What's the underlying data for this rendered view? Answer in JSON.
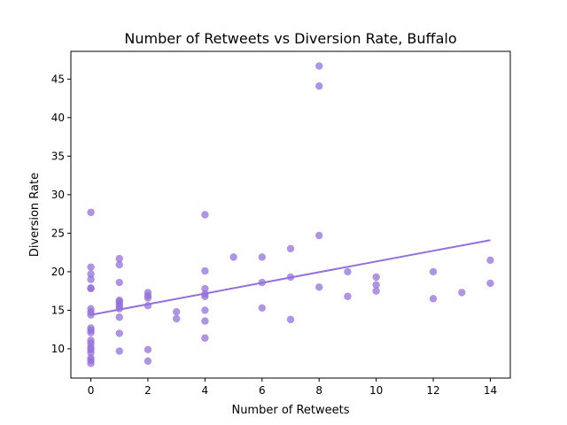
{
  "chart_data": {
    "type": "scatter",
    "title": "Number of Retweets vs Diversion Rate, Buffalo",
    "xlabel": "Number of Retweets",
    "ylabel": "Diversion Rate",
    "xlim": [
      -0.7,
      14.7
    ],
    "ylim": [
      6.2,
      48.6
    ],
    "xticks": [
      0,
      2,
      4,
      6,
      8,
      10,
      12,
      14
    ],
    "yticks": [
      10,
      15,
      20,
      25,
      30,
      35,
      40,
      45
    ],
    "grid": false,
    "point_color": "#9370db",
    "line_color": "#9370db",
    "points": [
      [
        0,
        27.7
      ],
      [
        0,
        20.6
      ],
      [
        0,
        19.7
      ],
      [
        0,
        19.0
      ],
      [
        0,
        17.9
      ],
      [
        0,
        17.8
      ],
      [
        0,
        15.2
      ],
      [
        0,
        14.8
      ],
      [
        0,
        14.4
      ],
      [
        0,
        12.7
      ],
      [
        0,
        12.4
      ],
      [
        0,
        12.1
      ],
      [
        0,
        11.1
      ],
      [
        0,
        10.7
      ],
      [
        0,
        10.2
      ],
      [
        0,
        9.9
      ],
      [
        0,
        9.5
      ],
      [
        0,
        8.8
      ],
      [
        0,
        8.5
      ],
      [
        0,
        8.1
      ],
      [
        1,
        21.7
      ],
      [
        1,
        20.9
      ],
      [
        1,
        18.6
      ],
      [
        1,
        16.3
      ],
      [
        1,
        16.1
      ],
      [
        1,
        15.8
      ],
      [
        1,
        15.5
      ],
      [
        1,
        15.2
      ],
      [
        1,
        14.1
      ],
      [
        1,
        12.0
      ],
      [
        1,
        9.7
      ],
      [
        2,
        17.3
      ],
      [
        2,
        16.9
      ],
      [
        2,
        16.6
      ],
      [
        2,
        15.6
      ],
      [
        2,
        9.9
      ],
      [
        2,
        8.4
      ],
      [
        3,
        14.8
      ],
      [
        3,
        13.9
      ],
      [
        4,
        27.4
      ],
      [
        4,
        20.1
      ],
      [
        4,
        17.8
      ],
      [
        4,
        17.1
      ],
      [
        4,
        16.8
      ],
      [
        4,
        15.0
      ],
      [
        4,
        13.6
      ],
      [
        4,
        11.4
      ],
      [
        5,
        21.9
      ],
      [
        6,
        21.9
      ],
      [
        6,
        18.6
      ],
      [
        6,
        15.3
      ],
      [
        7,
        23.0
      ],
      [
        7,
        19.3
      ],
      [
        7,
        13.8
      ],
      [
        8,
        46.7
      ],
      [
        8,
        44.1
      ],
      [
        8,
        24.7
      ],
      [
        8,
        18.0
      ],
      [
        9,
        20.0
      ],
      [
        9,
        16.8
      ],
      [
        10,
        19.3
      ],
      [
        10,
        18.3
      ],
      [
        10,
        17.5
      ],
      [
        12,
        20.0
      ],
      [
        12,
        16.5
      ],
      [
        13,
        17.3
      ],
      [
        14,
        21.5
      ],
      [
        14,
        18.5
      ]
    ],
    "trend_line": {
      "x": [
        0,
        14
      ],
      "y": [
        14.4,
        24.1
      ]
    }
  }
}
